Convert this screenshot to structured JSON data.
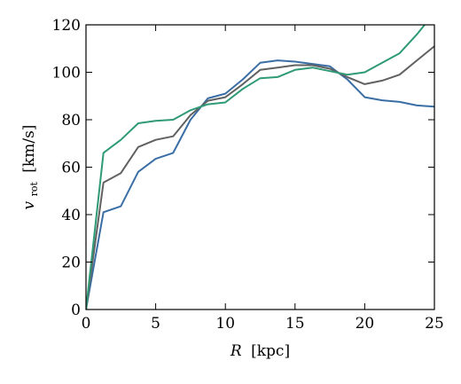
{
  "chart_data": {
    "type": "line",
    "xlabel": {
      "symbol": "R",
      "unit": "[kpc]"
    },
    "ylabel": {
      "symbol": "v",
      "subscript": "rot",
      "unit": "[km/s]"
    },
    "xlim": [
      0,
      25
    ],
    "ylim": [
      0,
      120
    ],
    "xticks": [
      0,
      5,
      10,
      15,
      20,
      25
    ],
    "yticks": [
      0,
      20,
      40,
      60,
      80,
      100,
      120
    ],
    "grid": false,
    "series": [
      {
        "color": "#3a6ea5",
        "x": [
          0,
          1.25,
          2.5,
          3.75,
          5,
          6.25,
          7.5,
          8.75,
          10,
          11.25,
          12.5,
          13.75,
          15,
          16.25,
          17.5,
          18.75,
          20,
          21.25,
          22.5,
          23.75,
          25
        ],
        "y": [
          0,
          41,
          43.5,
          58,
          63.5,
          66,
          80,
          89,
          91,
          97,
          104,
          105,
          104.5,
          103.5,
          102.5,
          97,
          89.5,
          88.2,
          87.5,
          86,
          85.5
        ]
      },
      {
        "color": "#616161",
        "x": [
          0,
          1.25,
          2.5,
          3.75,
          5,
          6.25,
          7.5,
          8.75,
          10,
          11.25,
          12.5,
          13.75,
          15,
          16.25,
          17.5,
          18.75,
          20,
          21.25,
          22.5,
          23.75,
          25
        ],
        "y": [
          0,
          53.5,
          57.5,
          68.5,
          71.5,
          73,
          82,
          88,
          89.5,
          95,
          101,
          102,
          103,
          103,
          101.5,
          98,
          95,
          96.5,
          99,
          105,
          111
        ]
      },
      {
        "color": "#2e9a76",
        "x": [
          0,
          1.25,
          2.5,
          3.75,
          5,
          6.25,
          7.5,
          8.75,
          10,
          11.25,
          12.5,
          13.75,
          15,
          16.25,
          17.5,
          18.75,
          20,
          21.25,
          22.5,
          23.75,
          24.3
        ],
        "y": [
          0,
          66,
          71.5,
          78.5,
          79.5,
          80,
          84,
          86.5,
          87.3,
          93,
          97.5,
          98,
          101,
          102,
          100.5,
          99,
          100,
          104,
          108,
          116,
          120
        ]
      }
    ]
  }
}
